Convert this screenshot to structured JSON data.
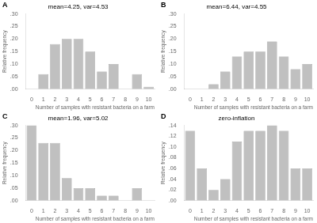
{
  "chart_data": [
    {
      "type": "bar",
      "title": "mean=4.25, var=4.53",
      "annotations": [
        "A"
      ],
      "categories": [
        "0",
        "1",
        "2",
        "3",
        "4",
        "5",
        "6",
        "7",
        "8",
        "9",
        "10"
      ],
      "values": [
        0.0,
        0.06,
        0.18,
        0.2,
        0.2,
        0.15,
        0.07,
        0.1,
        0.0,
        0.06,
        0.01
      ],
      "color": "#c0c0c0",
      "xlabel": "Number of samples with resistant bacteria on a farm",
      "ylabel": "Relative frequency",
      "ylim": [
        0,
        0.3
      ],
      "yticks": [
        {
          "value": 0.0,
          "label": ".00"
        },
        {
          "value": 0.05,
          "label": ".05"
        },
        {
          "value": 0.1,
          "label": ".10"
        },
        {
          "value": 0.15,
          "label": ".15"
        },
        {
          "value": 0.2,
          "label": ".20"
        },
        {
          "value": 0.25,
          "label": ".25"
        },
        {
          "value": 0.3,
          "label": ".30"
        }
      ],
      "grid": false
    },
    {
      "type": "bar",
      "title": "mean=6.44, var=4.55",
      "annotations": [
        "B"
      ],
      "categories": [
        "0",
        "1",
        "2",
        "3",
        "4",
        "5",
        "6",
        "7",
        "8",
        "9",
        "10"
      ],
      "values": [
        0.0,
        0.0,
        0.02,
        0.07,
        0.13,
        0.15,
        0.15,
        0.19,
        0.13,
        0.08,
        0.1
      ],
      "color": "#c0c0c0",
      "xlabel": "Number of samples with resistant bacteria on a farm",
      "ylabel": "Relative frequency",
      "ylim": [
        0,
        0.3
      ],
      "yticks": [
        {
          "value": 0.0,
          "label": ".00"
        },
        {
          "value": 0.05,
          "label": ".05"
        },
        {
          "value": 0.1,
          "label": ".10"
        },
        {
          "value": 0.15,
          "label": ".15"
        },
        {
          "value": 0.2,
          "label": ".20"
        },
        {
          "value": 0.25,
          "label": ".25"
        },
        {
          "value": 0.3,
          "label": ".30"
        }
      ],
      "grid": false
    },
    {
      "type": "bar",
      "title": "mean=1.96, var=5.02",
      "annotations": [
        "C"
      ],
      "categories": [
        "0",
        "1",
        "2",
        "3",
        "4",
        "5",
        "6",
        "7",
        "8",
        "9",
        "10"
      ],
      "values": [
        0.3,
        0.23,
        0.23,
        0.09,
        0.05,
        0.05,
        0.02,
        0.02,
        0.0,
        0.05,
        0.0
      ],
      "color": "#c0c0c0",
      "xlabel": "Number of samples with resistant bacteria on a farm",
      "ylabel": "Relative frequency",
      "ylim": [
        0,
        0.3
      ],
      "yticks": [
        {
          "value": 0.0,
          "label": ".00"
        },
        {
          "value": 0.05,
          "label": ".05"
        },
        {
          "value": 0.1,
          "label": ".10"
        },
        {
          "value": 0.15,
          "label": ".15"
        },
        {
          "value": 0.2,
          "label": ".20"
        },
        {
          "value": 0.25,
          "label": ".25"
        },
        {
          "value": 0.3,
          "label": ".30"
        }
      ],
      "grid": false
    },
    {
      "type": "bar",
      "title": "zero-inflation",
      "annotations": [
        "D"
      ],
      "categories": [
        "0",
        "1",
        "2",
        "3",
        "4",
        "5",
        "6",
        "7",
        "8",
        "9",
        "10"
      ],
      "values": [
        0.13,
        0.06,
        0.02,
        0.04,
        0.11,
        0.13,
        0.13,
        0.14,
        0.13,
        0.06,
        0.06
      ],
      "color": "#c0c0c0",
      "xlabel": "Number of samples with resistant bacteria on a farm",
      "ylabel": "Relative frequency",
      "ylim": [
        0,
        0.14
      ],
      "yticks": [
        {
          "value": 0.0,
          "label": ".00"
        },
        {
          "value": 0.02,
          "label": ".02"
        },
        {
          "value": 0.04,
          "label": ".04"
        },
        {
          "value": 0.06,
          "label": ".06"
        },
        {
          "value": 0.08,
          "label": ".08"
        },
        {
          "value": 0.1,
          "label": ".10"
        },
        {
          "value": 0.12,
          "label": ".12"
        },
        {
          "value": 0.14,
          "label": ".14"
        }
      ],
      "grid": false
    }
  ]
}
